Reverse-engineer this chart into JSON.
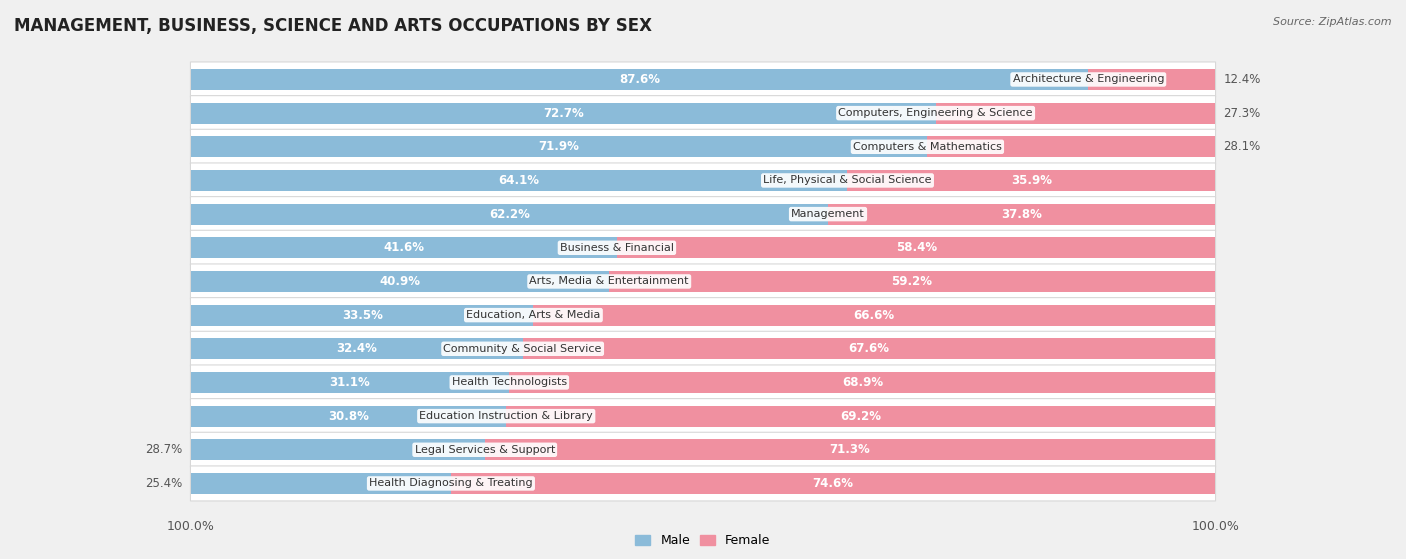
{
  "title": "MANAGEMENT, BUSINESS, SCIENCE AND ARTS OCCUPATIONS BY SEX",
  "source": "Source: ZipAtlas.com",
  "categories": [
    "Architecture & Engineering",
    "Computers, Engineering & Science",
    "Computers & Mathematics",
    "Life, Physical & Social Science",
    "Management",
    "Business & Financial",
    "Arts, Media & Entertainment",
    "Education, Arts & Media",
    "Community & Social Service",
    "Health Technologists",
    "Education Instruction & Library",
    "Legal Services & Support",
    "Health Diagnosing & Treating"
  ],
  "male_pct": [
    87.6,
    72.7,
    71.9,
    64.1,
    62.2,
    41.6,
    40.9,
    33.5,
    32.4,
    31.1,
    30.8,
    28.7,
    25.4
  ],
  "female_pct": [
    12.4,
    27.3,
    28.1,
    35.9,
    37.8,
    58.4,
    59.2,
    66.6,
    67.6,
    68.9,
    69.2,
    71.3,
    74.6
  ],
  "male_color": "#8bbbd9",
  "female_color": "#f090a0",
  "bg_color": "#f0f0f0",
  "row_bg": "#ffffff",
  "title_fontsize": 12,
  "bar_height": 0.62,
  "label_outside_color": "#555555",
  "label_inside_color": "#ffffff"
}
